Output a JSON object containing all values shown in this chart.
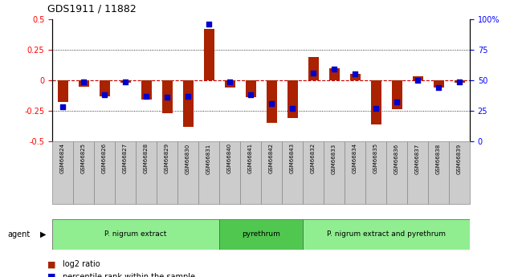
{
  "title": "GDS1911 / 11882",
  "samples": [
    "GSM66824",
    "GSM66825",
    "GSM66826",
    "GSM66827",
    "GSM66828",
    "GSM66829",
    "GSM66830",
    "GSM66831",
    "GSM66840",
    "GSM66841",
    "GSM66842",
    "GSM66843",
    "GSM66832",
    "GSM66833",
    "GSM66834",
    "GSM66835",
    "GSM66836",
    "GSM66837",
    "GSM66838",
    "GSM66839"
  ],
  "log2_ratio": [
    -0.18,
    -0.05,
    -0.13,
    -0.02,
    -0.16,
    -0.27,
    -0.38,
    0.42,
    -0.06,
    -0.14,
    -0.35,
    -0.31,
    0.19,
    0.1,
    0.05,
    -0.36,
    -0.24,
    0.03,
    -0.06,
    -0.02
  ],
  "pct_rank": [
    28,
    49,
    38,
    49,
    37,
    36,
    37,
    96,
    49,
    38,
    31,
    27,
    56,
    59,
    55,
    27,
    32,
    50,
    44,
    49
  ],
  "bar_color": "#aa2200",
  "dot_color": "#0000cc",
  "zero_line_color": "#cc0000",
  "ylim_left": [
    -0.5,
    0.5
  ],
  "ylim_right": [
    0,
    100
  ],
  "yticks_left": [
    -0.5,
    -0.25,
    0.0,
    0.25,
    0.5
  ],
  "yticks_right": [
    0,
    25,
    50,
    75,
    100
  ],
  "bar_width": 0.5,
  "dot_size": 22,
  "group_defs": [
    {
      "label": "P. nigrum extract",
      "start": 0,
      "end": 8
    },
    {
      "label": "pyrethrum",
      "start": 8,
      "end": 12
    },
    {
      "label": "P. nigrum extract and pyrethrum",
      "start": 12,
      "end": 20
    }
  ],
  "group_color_light": "#90EE90",
  "group_color_dark": "#50C850",
  "tick_box_color": "#cccccc",
  "tick_box_edge": "#888888"
}
